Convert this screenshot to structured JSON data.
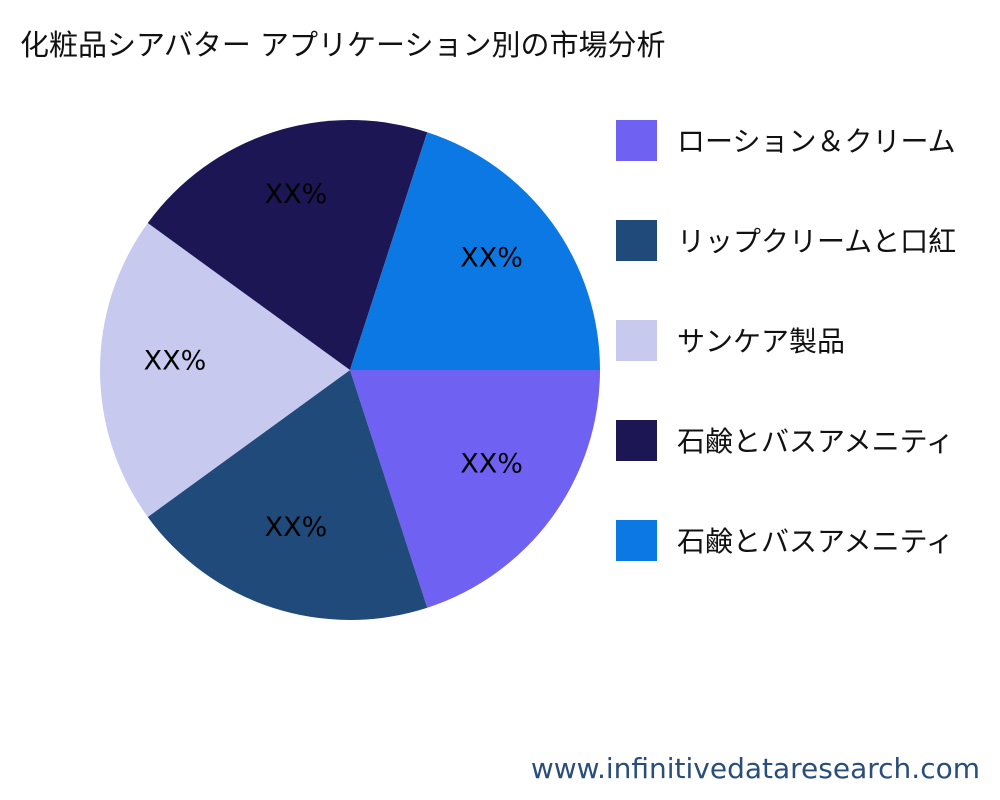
{
  "chart_data": {
    "type": "pie",
    "title": "化粧品シアバター アプリケーション別の市場分析",
    "categories": [
      "ローション＆クリーム",
      "リップクリームと口紅",
      "サンケア製品",
      "石鹸とバスアメニティ",
      "石鹸とバスアメニティ"
    ],
    "values": [
      20,
      20,
      20,
      20,
      20
    ],
    "data_labels": [
      "XX%",
      "XX%",
      "XX%",
      "XX%",
      "XX%"
    ],
    "colors": [
      "#6f61f2",
      "#1f4a7a",
      "#c8c9ef",
      "#1c1654",
      "#0b78e3"
    ],
    "legend_position": "right",
    "start_angle": "3 o'clock, clockwise"
  },
  "footer": "www.infinitivedataresearch.com"
}
